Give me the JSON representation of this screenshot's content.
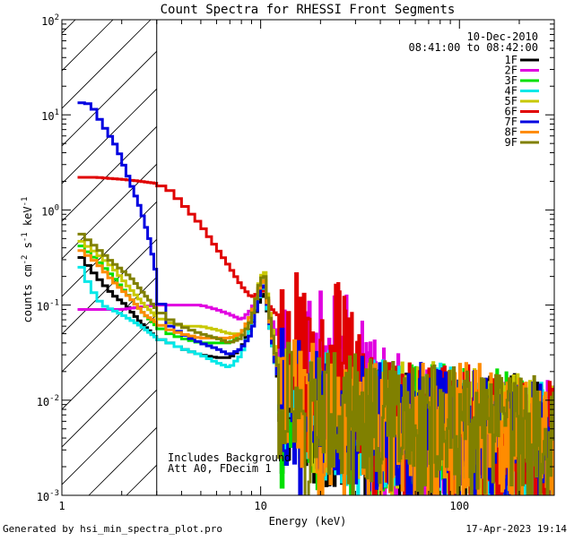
{
  "chart_data": {
    "type": "line",
    "title": "Count Spectra for RHESSI Front Segments",
    "xlabel": "Energy (keV)",
    "ylabel_parts": [
      "counts cm",
      "-2",
      " s",
      "-1",
      " keV",
      "-1"
    ],
    "xscale": "log",
    "yscale": "log",
    "xlim": [
      1,
      300
    ],
    "ylim": [
      0.001,
      100
    ],
    "x_ticks": [
      {
        "value": 1,
        "label": "1"
      },
      {
        "value": 10,
        "label": "10"
      },
      {
        "value": 100,
        "label": "100"
      }
    ],
    "y_ticks": [
      {
        "value": 0.001,
        "base": "10",
        "exp": "-3"
      },
      {
        "value": 0.01,
        "base": "10",
        "exp": "-2"
      },
      {
        "value": 0.1,
        "base": "10",
        "exp": "-1"
      },
      {
        "value": 1,
        "base": "10",
        "exp": "0"
      },
      {
        "value": 10,
        "base": "10",
        "exp": "1"
      },
      {
        "value": 100,
        "base": "10",
        "exp": "2"
      }
    ],
    "date": "10-Dec-2010",
    "time_range": "08:41:00 to 08:42:00",
    "attenuator_cutoff_kev": 3,
    "notes": [
      "Includes Background",
      "Att A0, FDecim 1"
    ],
    "series": [
      {
        "name": "1F",
        "color": "#000000",
        "seed": 11,
        "points": [
          [
            1.2,
            0.35
          ],
          [
            1.5,
            0.2
          ],
          [
            1.8,
            0.13
          ],
          [
            2.1,
            0.1
          ],
          [
            2.5,
            0.065
          ],
          [
            3.0,
            0.045
          ],
          [
            3.5,
            0.04
          ],
          [
            4.0,
            0.035
          ],
          [
            5.0,
            0.03
          ],
          [
            6.0,
            0.028
          ],
          [
            7.0,
            0.028
          ],
          [
            8.0,
            0.035
          ],
          [
            9.0,
            0.06
          ],
          [
            10.0,
            0.12
          ],
          [
            10.5,
            0.13
          ],
          [
            11.0,
            0.07
          ],
          [
            12.0,
            0.02
          ],
          [
            13.0,
            0.01
          ],
          [
            15.0,
            0.007
          ],
          [
            20.0,
            0.006
          ],
          [
            30.0,
            0.005
          ],
          [
            50.0,
            0.004
          ],
          [
            80.0,
            0.004
          ],
          [
            120.0,
            0.004
          ],
          [
            200.0,
            0.004
          ],
          [
            300.0,
            0.003
          ]
        ]
      },
      {
        "name": "2F",
        "color": "#e000e0",
        "seed": 23,
        "points": [
          [
            1.2,
            0.09
          ],
          [
            2.0,
            0.09
          ],
          [
            3.0,
            0.1
          ],
          [
            4.0,
            0.1
          ],
          [
            5.0,
            0.1
          ],
          [
            6.0,
            0.09
          ],
          [
            7.0,
            0.08
          ],
          [
            8.0,
            0.07
          ],
          [
            9.0,
            0.09
          ],
          [
            10.0,
            0.15
          ],
          [
            10.5,
            0.16
          ],
          [
            11.0,
            0.09
          ],
          [
            12.0,
            0.05
          ],
          [
            14.0,
            0.04
          ],
          [
            17.0,
            0.035
          ],
          [
            20.0,
            0.03
          ],
          [
            25.0,
            0.03
          ],
          [
            30.0,
            0.02
          ],
          [
            40.0,
            0.01
          ],
          [
            50.0,
            0.006
          ],
          [
            80.0,
            0.005
          ],
          [
            120.0,
            0.004
          ],
          [
            200.0,
            0.004
          ],
          [
            300.0,
            0.003
          ]
        ]
      },
      {
        "name": "3F",
        "color": "#00e000",
        "seed": 37,
        "points": [
          [
            1.2,
            0.45
          ],
          [
            1.5,
            0.3
          ],
          [
            1.8,
            0.2
          ],
          [
            2.2,
            0.12
          ],
          [
            2.6,
            0.08
          ],
          [
            3.0,
            0.06
          ],
          [
            3.5,
            0.05
          ],
          [
            4.0,
            0.045
          ],
          [
            5.0,
            0.04
          ],
          [
            6.0,
            0.04
          ],
          [
            7.0,
            0.04
          ],
          [
            8.0,
            0.05
          ],
          [
            9.0,
            0.08
          ],
          [
            10.0,
            0.17
          ],
          [
            10.5,
            0.18
          ],
          [
            11.0,
            0.08
          ],
          [
            12.0,
            0.02
          ],
          [
            14.0,
            0.01
          ],
          [
            20.0,
            0.008
          ],
          [
            30.0,
            0.006
          ],
          [
            50.0,
            0.005
          ],
          [
            80.0,
            0.005
          ],
          [
            120.0,
            0.005
          ],
          [
            200.0,
            0.004
          ],
          [
            300.0,
            0.003
          ]
        ]
      },
      {
        "name": "4F",
        "color": "#00e8e8",
        "seed": 41,
        "points": [
          [
            1.2,
            0.3
          ],
          [
            1.4,
            0.15
          ],
          [
            1.6,
            0.1
          ],
          [
            2.0,
            0.08
          ],
          [
            2.5,
            0.06
          ],
          [
            3.0,
            0.045
          ],
          [
            3.5,
            0.04
          ],
          [
            4.0,
            0.035
          ],
          [
            5.0,
            0.03
          ],
          [
            6.0,
            0.025
          ],
          [
            7.0,
            0.022
          ],
          [
            8.0,
            0.03
          ],
          [
            9.0,
            0.06
          ],
          [
            10.0,
            0.14
          ],
          [
            10.5,
            0.15
          ],
          [
            11.0,
            0.07
          ],
          [
            12.0,
            0.02
          ],
          [
            14.0,
            0.01
          ],
          [
            20.0,
            0.007
          ],
          [
            30.0,
            0.006
          ],
          [
            50.0,
            0.005
          ],
          [
            80.0,
            0.005
          ],
          [
            120.0,
            0.004
          ],
          [
            200.0,
            0.004
          ],
          [
            300.0,
            0.003
          ]
        ]
      },
      {
        "name": "5F",
        "color": "#c8c800",
        "seed": 53,
        "points": [
          [
            1.2,
            0.5
          ],
          [
            1.5,
            0.35
          ],
          [
            1.8,
            0.25
          ],
          [
            2.2,
            0.15
          ],
          [
            2.6,
            0.1
          ],
          [
            3.0,
            0.075
          ],
          [
            3.5,
            0.065
          ],
          [
            4.0,
            0.06
          ],
          [
            5.0,
            0.06
          ],
          [
            6.0,
            0.055
          ],
          [
            7.0,
            0.05
          ],
          [
            8.0,
            0.05
          ],
          [
            9.0,
            0.07
          ],
          [
            10.0,
            0.2
          ],
          [
            10.5,
            0.22
          ],
          [
            11.0,
            0.1
          ],
          [
            12.0,
            0.03
          ],
          [
            14.0,
            0.012
          ],
          [
            20.0,
            0.008
          ],
          [
            30.0,
            0.006
          ],
          [
            50.0,
            0.005
          ],
          [
            80.0,
            0.005
          ],
          [
            120.0,
            0.005
          ],
          [
            200.0,
            0.004
          ],
          [
            300.0,
            0.004
          ]
        ]
      },
      {
        "name": "6F",
        "color": "#e00000",
        "seed": 67,
        "points": [
          [
            1.2,
            2.2
          ],
          [
            1.5,
            2.2
          ],
          [
            2.0,
            2.1
          ],
          [
            2.5,
            2.0
          ],
          [
            3.0,
            1.9
          ],
          [
            3.5,
            1.6
          ],
          [
            4.0,
            1.2
          ],
          [
            5.0,
            0.7
          ],
          [
            6.0,
            0.4
          ],
          [
            7.0,
            0.25
          ],
          [
            8.0,
            0.16
          ],
          [
            9.0,
            0.12
          ],
          [
            10.0,
            0.14
          ],
          [
            10.5,
            0.14
          ],
          [
            11.0,
            0.1
          ],
          [
            12.0,
            0.08
          ],
          [
            13.0,
            0.075
          ],
          [
            14.0,
            0.06
          ],
          [
            16.0,
            0.04
          ],
          [
            18.0,
            0.035
          ],
          [
            20.0,
            0.037
          ],
          [
            25.0,
            0.035
          ],
          [
            28.0,
            0.025
          ],
          [
            30.0,
            0.015
          ],
          [
            32.0,
            0.008
          ],
          [
            40.0,
            0.006
          ],
          [
            60.0,
            0.005
          ],
          [
            100.0,
            0.005
          ],
          [
            150.0,
            0.004
          ],
          [
            200.0,
            0.004
          ],
          [
            300.0,
            0.003
          ]
        ]
      },
      {
        "name": "7F",
        "color": "#0000e0",
        "seed": 79,
        "points": [
          [
            1.2,
            13.5
          ],
          [
            1.4,
            13
          ],
          [
            1.6,
            8
          ],
          [
            1.9,
            4.5
          ],
          [
            2.2,
            2.0
          ],
          [
            2.5,
            1.0
          ],
          [
            2.75,
            0.5
          ],
          [
            3.0,
            0.2
          ],
          [
            3.2,
            0.09
          ],
          [
            3.5,
            0.06
          ],
          [
            4.0,
            0.05
          ],
          [
            5.0,
            0.04
          ],
          [
            6.0,
            0.035
          ],
          [
            7.0,
            0.03
          ],
          [
            8.0,
            0.035
          ],
          [
            9.0,
            0.05
          ],
          [
            10.0,
            0.15
          ],
          [
            10.5,
            0.16
          ],
          [
            11.0,
            0.08
          ],
          [
            12.0,
            0.02
          ],
          [
            14.0,
            0.01
          ],
          [
            20.0,
            0.007
          ],
          [
            30.0,
            0.006
          ],
          [
            50.0,
            0.005
          ],
          [
            80.0,
            0.005
          ],
          [
            120.0,
            0.004
          ],
          [
            200.0,
            0.004
          ],
          [
            300.0,
            0.003
          ]
        ]
      },
      {
        "name": "8F",
        "color": "#ff8c00",
        "seed": 83,
        "points": [
          [
            1.2,
            0.4
          ],
          [
            1.5,
            0.28
          ],
          [
            1.8,
            0.18
          ],
          [
            2.2,
            0.12
          ],
          [
            2.6,
            0.08
          ],
          [
            3.0,
            0.065
          ],
          [
            3.5,
            0.055
          ],
          [
            4.0,
            0.05
          ],
          [
            5.0,
            0.045
          ],
          [
            6.0,
            0.045
          ],
          [
            7.0,
            0.045
          ],
          [
            8.0,
            0.05
          ],
          [
            9.0,
            0.08
          ],
          [
            10.0,
            0.17
          ],
          [
            10.5,
            0.18
          ],
          [
            11.0,
            0.08
          ],
          [
            12.0,
            0.025
          ],
          [
            14.0,
            0.01
          ],
          [
            20.0,
            0.008
          ],
          [
            30.0,
            0.006
          ],
          [
            50.0,
            0.005
          ],
          [
            80.0,
            0.005
          ],
          [
            120.0,
            0.005
          ],
          [
            200.0,
            0.004
          ],
          [
            300.0,
            0.003
          ]
        ]
      },
      {
        "name": "9F",
        "color": "#808000",
        "seed": 97,
        "points": [
          [
            1.2,
            0.6
          ],
          [
            1.5,
            0.4
          ],
          [
            1.8,
            0.28
          ],
          [
            2.2,
            0.2
          ],
          [
            2.6,
            0.13
          ],
          [
            3.0,
            0.09
          ],
          [
            3.5,
            0.07
          ],
          [
            4.0,
            0.06
          ],
          [
            5.0,
            0.05
          ],
          [
            6.0,
            0.045
          ],
          [
            7.0,
            0.04
          ],
          [
            8.0,
            0.045
          ],
          [
            9.0,
            0.07
          ],
          [
            10.0,
            0.19
          ],
          [
            10.5,
            0.2
          ],
          [
            11.0,
            0.09
          ],
          [
            12.0,
            0.025
          ],
          [
            14.0,
            0.012
          ],
          [
            20.0,
            0.008
          ],
          [
            30.0,
            0.006
          ],
          [
            50.0,
            0.005
          ],
          [
            80.0,
            0.005
          ],
          [
            120.0,
            0.004
          ],
          [
            200.0,
            0.004
          ],
          [
            300.0,
            0.003
          ]
        ]
      }
    ]
  },
  "footer": {
    "generated_by": "Generated by hsi_min_spectra_plot.pro",
    "timestamp": "17-Apr-2023 19:14"
  }
}
